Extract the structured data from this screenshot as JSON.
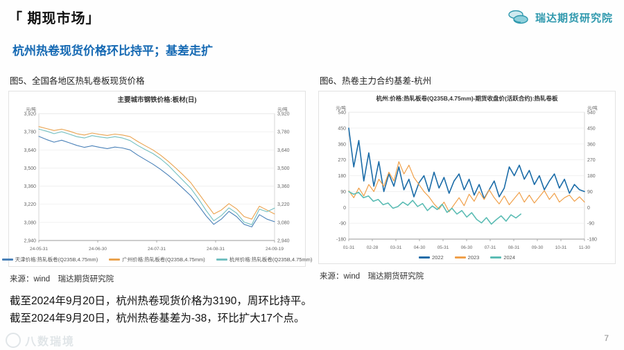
{
  "header": {
    "title": "「 期现市场」",
    "brand": "瑞达期货研究院"
  },
  "subtitle": "杭州热卷现货价格环比持平；基差走扩",
  "figures": {
    "left": {
      "caption": "图5、全国各地区热轧卷板现货价格",
      "source": "来源：wind　瑞达期货研究院"
    },
    "right": {
      "caption": "图6、热卷主力合约基差-杭州",
      "source": "来源：wind　瑞达期货研究院"
    }
  },
  "notes": [
    "截至2024年9月20日，杭州热卷现货价格为3190，周环比持平。",
    "截至2024年9月20日，杭州热卷基差为-38，环比扩大17个点。"
  ],
  "page_number": "7",
  "watermark": "八数瑞境",
  "colors": {
    "accent_blue": "#1569b3",
    "brand_teal": "#2e98ad"
  },
  "chart_data": [
    {
      "type": "line",
      "title": "主要城市钢铁价格:板材(日)",
      "ylabel": "元/吨",
      "ylabel_right": "元/吨",
      "ylim": [
        2940,
        3920
      ],
      "yticks": [
        2940,
        3080,
        3220,
        3360,
        3500,
        3640,
        3780,
        3920
      ],
      "ytick_format": "comma",
      "grid": true,
      "legend_position": "bottom",
      "xticklabels": [
        "24-05-31",
        "24-06-30",
        "24-07-31",
        "24-08-31",
        "24-09-19"
      ],
      "series": [
        {
          "name": "天津价格:热轧板卷(Q235B,4.75mm)",
          "color": "#4a81b8",
          "width": 1.1,
          "span": [
            0,
            1
          ],
          "values": [
            3745,
            3720,
            3700,
            3715,
            3695,
            3675,
            3660,
            3672,
            3660,
            3650,
            3662,
            3655,
            3640,
            3600,
            3565,
            3530,
            3490,
            3445,
            3395,
            3340,
            3285,
            3210,
            3130,
            3065,
            3105,
            3165,
            3125,
            3065,
            3045,
            3140,
            3105,
            3085
          ]
        },
        {
          "name": "广州价格:热轧板卷(Q235B,4.75mm)",
          "color": "#eaa24e",
          "width": 1.1,
          "span": [
            0,
            1
          ],
          "values": [
            3820,
            3805,
            3790,
            3800,
            3785,
            3765,
            3755,
            3770,
            3760,
            3752,
            3762,
            3755,
            3742,
            3705,
            3672,
            3640,
            3600,
            3552,
            3500,
            3445,
            3385,
            3305,
            3225,
            3145,
            3175,
            3225,
            3185,
            3125,
            3105,
            3205,
            3175,
            3145
          ]
        },
        {
          "name": "杭州价格:热轧板卷(Q235B,4.75mm)",
          "color": "#72bfc0",
          "width": 1.1,
          "span": [
            0,
            1
          ],
          "values": [
            3800,
            3785,
            3765,
            3780,
            3762,
            3742,
            3732,
            3750,
            3740,
            3732,
            3742,
            3732,
            3712,
            3675,
            3642,
            3612,
            3572,
            3522,
            3462,
            3402,
            3342,
            3262,
            3172,
            3092,
            3132,
            3192,
            3152,
            3082,
            3062,
            3182,
            3162,
            3190
          ]
        }
      ]
    },
    {
      "type": "line",
      "title": "杭州:价格:热轧板卷(Q235B,4.75mm)-期货收盘价(活跃合约):热轧卷板",
      "ylabel": "元/吨",
      "ylabel_right": "元/吨",
      "ylim": [
        -180,
        540
      ],
      "yticks": [
        -180,
        -90,
        0,
        90,
        180,
        270,
        360,
        450,
        540
      ],
      "ytick_format": "plain",
      "grid": true,
      "legend_position": "bottom",
      "xticklabels": [
        "01-31",
        "02-28",
        "03-31",
        "04-30",
        "05-31",
        "06-30",
        "07-31",
        "08-31",
        "09-30",
        "10-31",
        "11-30"
      ],
      "series": [
        {
          "name": "2022",
          "color": "#1b6ca8",
          "width": 1.6,
          "span": [
            0,
            1
          ],
          "values": [
            450,
            230,
            380,
            150,
            310,
            120,
            260,
            90,
            190,
            120,
            230,
            100,
            160,
            60,
            140,
            180,
            90,
            200,
            110,
            170,
            80,
            150,
            190,
            100,
            160,
            70,
            130,
            50,
            100,
            150,
            60,
            110,
            230,
            180,
            240,
            160,
            210,
            130,
            180,
            100,
            150,
            190,
            110,
            160,
            80,
            130,
            100,
            90
          ]
        },
        {
          "name": "2023",
          "color": "#f0a04a",
          "width": 1.2,
          "span": [
            0,
            1
          ],
          "values": [
            95,
            55,
            110,
            65,
            130,
            90,
            160,
            120,
            200,
            150,
            260,
            190,
            240,
            170,
            130,
            90,
            60,
            20,
            -10,
            30,
            -25,
            15,
            55,
            10,
            75,
            35,
            90,
            45,
            100,
            55,
            20,
            65,
            15,
            50,
            85,
            30,
            70,
            25,
            60,
            95,
            45,
            80,
            30,
            55,
            70,
            35,
            60,
            30
          ]
        },
        {
          "name": "2024",
          "color": "#5bbcb4",
          "width": 1.6,
          "span": [
            0,
            0.73
          ],
          "values": [
            90,
            75,
            85,
            55,
            65,
            35,
            45,
            15,
            25,
            -5,
            5,
            30,
            12,
            40,
            5,
            22,
            -18,
            8,
            -12,
            18,
            -28,
            -5,
            -38,
            -18,
            -55,
            -30,
            -68,
            -88,
            -58,
            -95,
            -70,
            -48,
            -78,
            -42,
            -60,
            -38
          ]
        }
      ]
    }
  ]
}
